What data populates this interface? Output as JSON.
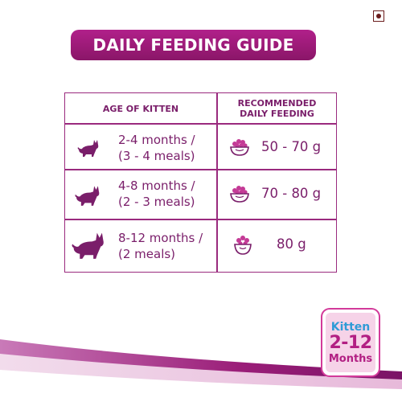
{
  "title": "DAILY FEEDING GUIDE",
  "table": {
    "header_age": [
      "AGE OF KITTEN"
    ],
    "header_feeding": [
      "RECOMMENDED",
      "DAILY FEEDING"
    ],
    "rows": [
      {
        "age_line1": "2-4 months /",
        "age_line2": "(3 - 4 meals)",
        "amount": "50 - 70 g"
      },
      {
        "age_line1": "4-8 months /",
        "age_line2": "(2 - 3 meals)",
        "amount": "70 - 80 g"
      },
      {
        "age_line1": "8-12 months /",
        "age_line2": "(2 meals)",
        "amount": "80 g"
      }
    ]
  },
  "badge": {
    "kitten": "Kitten",
    "range": "2-12",
    "months": "Months"
  },
  "colors": {
    "primary": "#9a1d78",
    "text": "#7a1e6a",
    "kitten_blue": "#2f9bd6",
    "badge_pink": "#f6d3e8"
  },
  "icons": [
    "veg-mark-icon",
    "cat-silhouette-icon",
    "food-bowl-icon"
  ]
}
